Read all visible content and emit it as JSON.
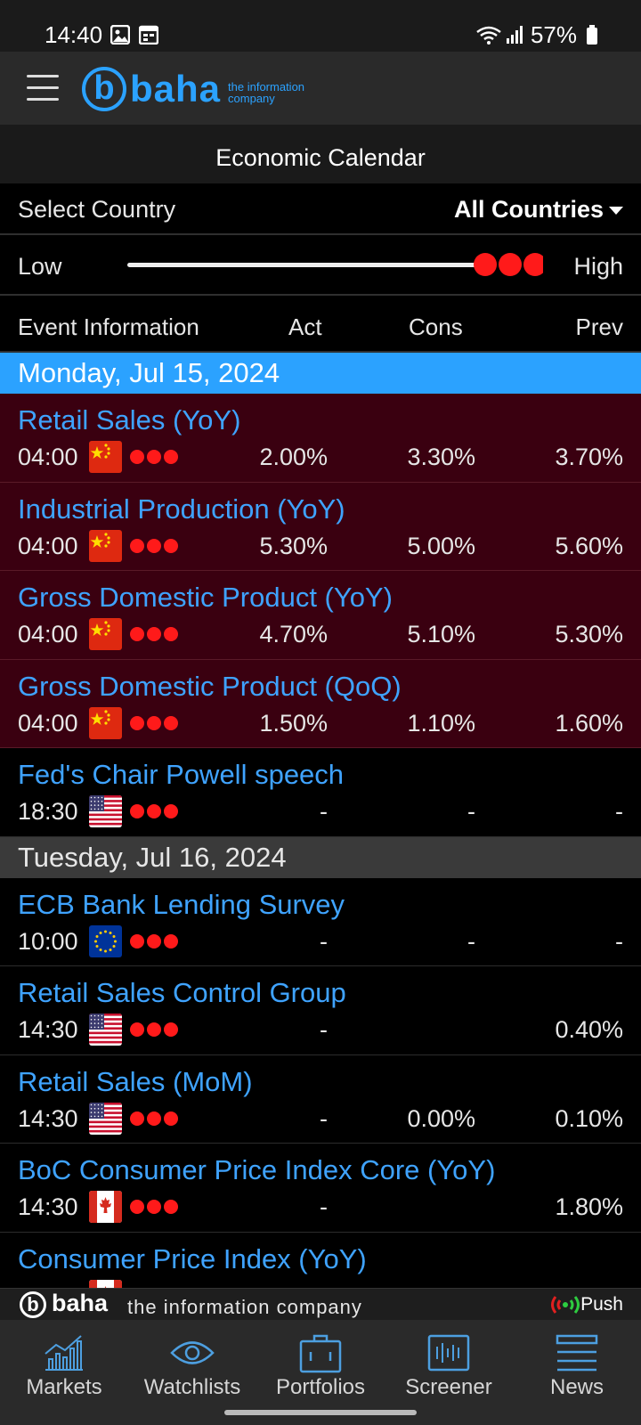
{
  "status_bar": {
    "time": "14:40",
    "battery": "57%"
  },
  "brand": {
    "letter": "b",
    "name": "baha",
    "tagline_line1": "the information",
    "tagline_line2": "company"
  },
  "page_title": "Economic Calendar",
  "country_filter": {
    "label": "Select Country",
    "value": "All Countries"
  },
  "importance": {
    "low_label": "Low",
    "high_label": "High",
    "selected_level": 3
  },
  "columns": {
    "event": "Event Information",
    "act": "Act",
    "cons": "Cons",
    "prev": "Prev"
  },
  "days": [
    {
      "date": "Monday, Jul 15, 2024",
      "style": "current",
      "events": [
        {
          "name": "Retail Sales (YoY)",
          "time": "04:00",
          "country": "china-flag",
          "act": "2.00%",
          "cons": "3.30%",
          "prev": "3.70%",
          "highlight": true
        },
        {
          "name": "Industrial Production (YoY)",
          "time": "04:00",
          "country": "china-flag",
          "act": "5.30%",
          "cons": "5.00%",
          "prev": "5.60%",
          "highlight": true
        },
        {
          "name": "Gross Domestic Product (YoY)",
          "time": "04:00",
          "country": "china-flag",
          "act": "4.70%",
          "cons": "5.10%",
          "prev": "5.30%",
          "highlight": true
        },
        {
          "name": "Gross Domestic Product (QoQ)",
          "time": "04:00",
          "country": "china-flag",
          "act": "1.50%",
          "cons": "1.10%",
          "prev": "1.60%",
          "highlight": true
        },
        {
          "name": "Fed's Chair Powell speech",
          "time": "18:30",
          "country": "usa-flag",
          "act": "-",
          "cons": "-",
          "prev": "-",
          "highlight": false
        }
      ]
    },
    {
      "date": "Tuesday, Jul 16, 2024",
      "style": "other",
      "events": [
        {
          "name": "ECB Bank Lending Survey",
          "time": "10:00",
          "country": "eu-flag",
          "act": "-",
          "cons": "-",
          "prev": "-",
          "highlight": false
        },
        {
          "name": "Retail Sales Control Group",
          "time": "14:30",
          "country": "usa-flag",
          "act": "-",
          "cons": "",
          "prev": "0.40%",
          "highlight": false
        },
        {
          "name": "Retail Sales (MoM)",
          "time": "14:30",
          "country": "usa-flag",
          "act": "-",
          "cons": "0.00%",
          "prev": "0.10%",
          "highlight": false
        },
        {
          "name": "BoC Consumer Price Index Core (YoY)",
          "time": "14:30",
          "country": "canada-flag",
          "act": "-",
          "cons": "",
          "prev": "1.80%",
          "highlight": false
        },
        {
          "name": "Consumer Price Index (YoY)",
          "time": "",
          "country": "canada-flag",
          "act": "",
          "cons": "",
          "prev": "",
          "highlight": false
        }
      ]
    }
  ],
  "footer_brand": {
    "letter": "b",
    "name": "baha",
    "tagline": "the information company",
    "push_label": "Push"
  },
  "bottom_nav": [
    {
      "label": "Markets",
      "icon": "chart-icon"
    },
    {
      "label": "Watchlists",
      "icon": "eye-icon"
    },
    {
      "label": "Portfolios",
      "icon": "briefcase-icon"
    },
    {
      "label": "Screener",
      "icon": "screener-icon"
    },
    {
      "label": "News",
      "icon": "news-icon"
    }
  ],
  "colors": {
    "accent": "#2ba2ff",
    "event_name": "#3fa3ff",
    "highlight_row": "#3a0010",
    "importance_dot": "#ff1a1a"
  }
}
